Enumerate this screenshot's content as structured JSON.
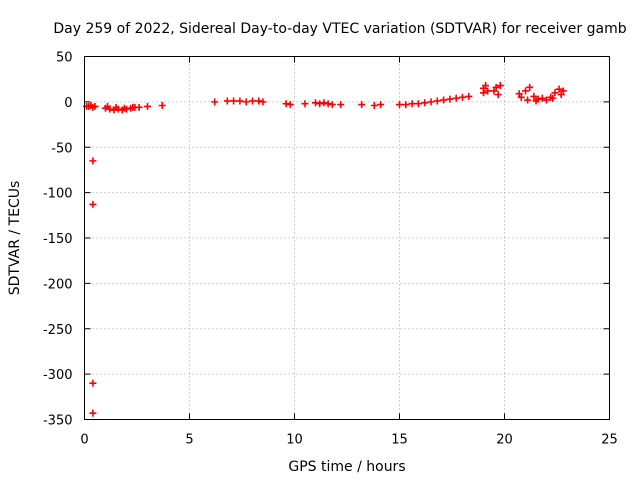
{
  "chart_data": {
    "type": "scatter",
    "title": "Day 259 of 2022, Sidereal Day-to-day VTEC variation (SDTVAR) for receiver gamb",
    "xlabel": "GPS time / hours",
    "ylabel": "SDTVAR / TECUs",
    "xlim": [
      0,
      25
    ],
    "ylim": [
      -350,
      50
    ],
    "xticks": [
      0,
      5,
      10,
      15,
      20,
      25
    ],
    "xtick_labels": [
      "0",
      "5",
      "10",
      "15",
      "20",
      "25"
    ],
    "yticks": [
      50,
      0,
      -50,
      -100,
      -150,
      -200,
      -250,
      -300,
      -350
    ],
    "ytick_labels": [
      "50",
      "0",
      "-50",
      "-100",
      "-150",
      "-200",
      "-250",
      "-300",
      "-350"
    ],
    "grid": true,
    "marker": "+",
    "color": "#ff0000",
    "series": [
      {
        "name": "SDTVAR",
        "points": [
          [
            0.1,
            -5
          ],
          [
            0.2,
            -5
          ],
          [
            0.3,
            -4
          ],
          [
            0.4,
            -6
          ],
          [
            0.5,
            -5
          ],
          [
            0.4,
            -65
          ],
          [
            0.4,
            -113
          ],
          [
            0.4,
            -310
          ],
          [
            0.4,
            -343
          ],
          [
            1.0,
            -7
          ],
          [
            1.2,
            -8
          ],
          [
            1.4,
            -9
          ],
          [
            1.6,
            -8
          ],
          [
            1.8,
            -9
          ],
          [
            2.0,
            -8
          ],
          [
            2.2,
            -7
          ],
          [
            2.4,
            -6
          ],
          [
            1.1,
            -5
          ],
          [
            1.5,
            -6
          ],
          [
            1.9,
            -7
          ],
          [
            2.3,
            -6
          ],
          [
            2.6,
            -6
          ],
          [
            3.0,
            -5
          ],
          [
            3.7,
            -4
          ],
          [
            6.2,
            0
          ],
          [
            6.8,
            1
          ],
          [
            7.1,
            1
          ],
          [
            7.4,
            1
          ],
          [
            7.7,
            0
          ],
          [
            8.0,
            1
          ],
          [
            8.3,
            1
          ],
          [
            8.5,
            0
          ],
          [
            9.6,
            -2
          ],
          [
            9.8,
            -3
          ],
          [
            10.5,
            -2
          ],
          [
            11.0,
            -1
          ],
          [
            11.2,
            -2
          ],
          [
            11.4,
            -1
          ],
          [
            11.6,
            -2
          ],
          [
            11.8,
            -3
          ],
          [
            12.2,
            -3
          ],
          [
            13.2,
            -3
          ],
          [
            13.8,
            -4
          ],
          [
            14.1,
            -3
          ],
          [
            15.0,
            -3
          ],
          [
            15.3,
            -3
          ],
          [
            15.6,
            -2
          ],
          [
            15.9,
            -2
          ],
          [
            16.2,
            -1
          ],
          [
            16.5,
            0
          ],
          [
            16.8,
            1
          ],
          [
            17.1,
            2
          ],
          [
            17.4,
            3
          ],
          [
            17.7,
            4
          ],
          [
            18.0,
            5
          ],
          [
            18.3,
            6
          ],
          [
            19.0,
            10
          ],
          [
            19.0,
            15
          ],
          [
            19.1,
            18
          ],
          [
            19.2,
            12
          ],
          [
            19.5,
            12
          ],
          [
            19.6,
            16
          ],
          [
            19.7,
            8
          ],
          [
            19.8,
            18
          ],
          [
            20.7,
            9
          ],
          [
            20.8,
            5
          ],
          [
            21.0,
            12
          ],
          [
            21.2,
            16
          ],
          [
            21.4,
            6
          ],
          [
            21.6,
            3
          ],
          [
            21.8,
            4
          ],
          [
            22.0,
            2
          ],
          [
            22.2,
            5
          ],
          [
            22.4,
            10
          ],
          [
            22.6,
            14
          ],
          [
            22.8,
            12
          ],
          [
            21.1,
            2
          ],
          [
            21.5,
            1
          ],
          [
            22.3,
            4
          ],
          [
            22.7,
            8
          ]
        ]
      }
    ]
  }
}
